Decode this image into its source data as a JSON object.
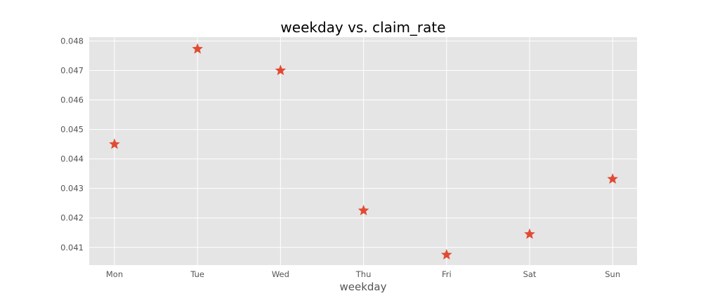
{
  "chart_data": {
    "type": "scatter",
    "title": "weekday vs. claim_rate",
    "xlabel": "weekday",
    "ylabel": "",
    "categories": [
      "Mon",
      "Tue",
      "Wed",
      "Thu",
      "Fri",
      "Sat",
      "Sun"
    ],
    "series": [
      {
        "values": [
          0.0445,
          0.04773,
          0.047,
          0.04225,
          0.04075,
          0.04145,
          0.04332
        ]
      }
    ],
    "ylim": [
      0.0404,
      0.04813
    ],
    "yticks": [
      "0.041",
      "0.042",
      "0.043",
      "0.044",
      "0.045",
      "0.046",
      "0.047",
      "0.048"
    ],
    "grid": true,
    "marker": "star",
    "colors": {
      "marker": "#E24A33",
      "plot_background": "#E5E5E5",
      "grid": "#FFFFFF",
      "tick_text": "#555555",
      "title_text": "#000000"
    }
  }
}
